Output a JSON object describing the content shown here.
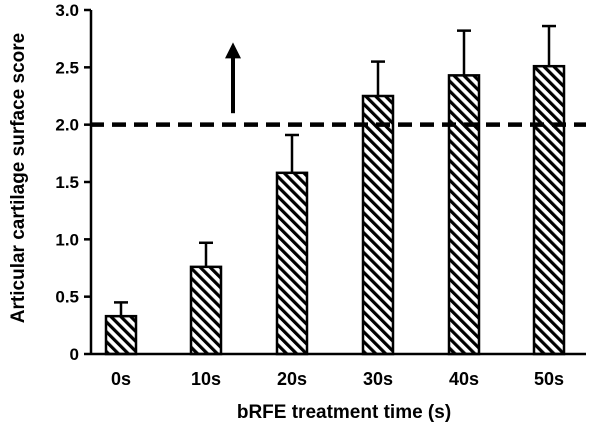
{
  "chart_data": {
    "type": "bar",
    "title": "",
    "xlabel": "bRFE treatment time (s)",
    "ylabel": "Articular cartilage surface score",
    "categories": [
      "0s",
      "10s",
      "20s",
      "30s",
      "40s",
      "50s"
    ],
    "values": [
      0.33,
      0.76,
      1.58,
      2.25,
      2.43,
      2.51
    ],
    "error_upper": [
      0.12,
      0.21,
      0.33,
      0.3,
      0.39,
      0.35
    ],
    "ylim": [
      0,
      3.0
    ],
    "yticks": [
      "0",
      "0.5",
      "1.0",
      "1.5",
      "2.0",
      "2.5",
      "3.0"
    ],
    "ytick_values": [
      0,
      0.5,
      1.0,
      1.5,
      2.0,
      2.5,
      3.0
    ],
    "reference_line": {
      "y": 2.0,
      "style": "dashed"
    },
    "annotation_arrow": {
      "x_between": [
        "10s",
        "20s"
      ],
      "y_from": 2.1,
      "y_to": 2.7,
      "direction": "up"
    },
    "bar_fill": "diagonal-hatch",
    "grid": false,
    "legend": "none",
    "colors": {
      "bar_stroke": "#000000",
      "hatch": "#000000",
      "background": "#ffffff"
    }
  }
}
